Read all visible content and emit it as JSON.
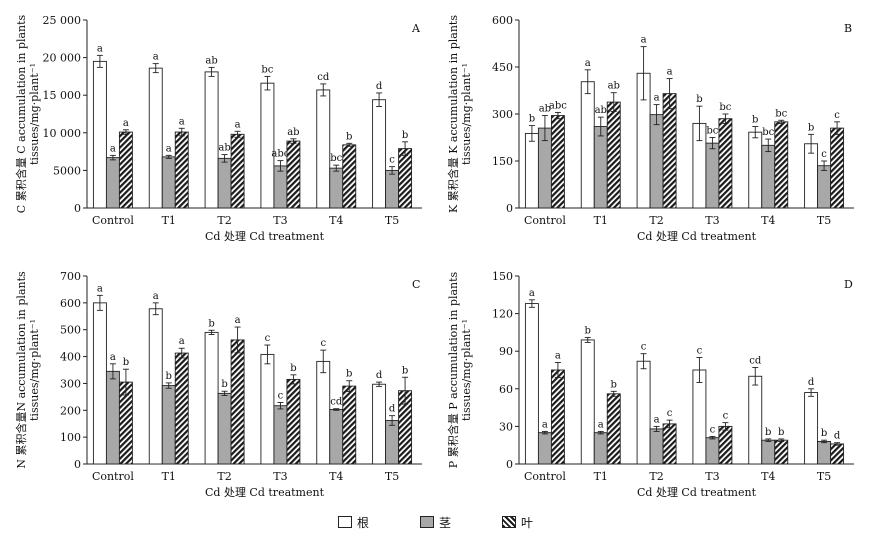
{
  "colors": {
    "root": "#ffffff",
    "stem": "#a8a8a8",
    "leaf_bg": "#ffffff",
    "leaf_hatch": "#1a1a1a",
    "axis": "#222222"
  },
  "legend": [
    {
      "label": "根",
      "style": "root"
    },
    {
      "label": "茎",
      "style": "stem"
    },
    {
      "label": "叶",
      "style": "leaf"
    }
  ],
  "chart_data": [
    {
      "type": "bar",
      "panel": "A",
      "categories": [
        "Control",
        "T1",
        "T2",
        "T3",
        "T4",
        "T5"
      ],
      "xlabel": "Cd 处理 Cd treatment",
      "ylabel_line1": "C 累积含量 C accumulation in plants",
      "ylabel_line2": "tissues/mg·plant⁻¹",
      "ylim": [
        0,
        25000
      ],
      "yticks": [
        0,
        5000,
        10000,
        15000,
        20000,
        25000
      ],
      "ytick_labels": [
        "0",
        "5000",
        "10 000",
        "15 000",
        "20 000",
        "25 000"
      ],
      "series": [
        {
          "key": "root",
          "values": [
            19500,
            18600,
            18100,
            16600,
            15700,
            14400
          ],
          "errors": [
            800,
            600,
            600,
            900,
            800,
            900
          ],
          "letters": [
            "a",
            "a",
            "ab",
            "bc",
            "cd",
            "d"
          ]
        },
        {
          "key": "stem",
          "values": [
            6700,
            6800,
            6600,
            5600,
            5300,
            5000
          ],
          "errors": [
            300,
            200,
            500,
            700,
            400,
            500
          ],
          "letters": [
            "a",
            "a",
            "ab",
            "abc",
            "bc",
            "c"
          ]
        },
        {
          "key": "leaf",
          "values": [
            10100,
            10100,
            9800,
            8900,
            8400,
            7900
          ],
          "errors": [
            300,
            500,
            400,
            300,
            200,
            900
          ],
          "letters": [
            "a",
            "a",
            "a",
            "ab",
            "b",
            "b"
          ]
        }
      ]
    },
    {
      "type": "bar",
      "panel": "B",
      "categories": [
        "Control",
        "T1",
        "T2",
        "T3",
        "T4",
        "T5"
      ],
      "xlabel": "Cd 处理 Cd treatment",
      "ylabel_line1": "K 累积含量 K accumulation in plants",
      "ylabel_line2": "tissues/mg·plant⁻¹",
      "ylim": [
        0,
        600
      ],
      "yticks": [
        0,
        150,
        300,
        450,
        600
      ],
      "ytick_labels": [
        "0",
        "150",
        "300",
        "450",
        "600"
      ],
      "series": [
        {
          "key": "root",
          "values": [
            238,
            403,
            430,
            270,
            242,
            205
          ],
          "errors": [
            25,
            38,
            85,
            55,
            18,
            30
          ],
          "letters": [
            "b",
            "a",
            "a",
            "b",
            "b",
            "b"
          ]
        },
        {
          "key": "stem",
          "values": [
            255,
            260,
            298,
            207,
            200,
            135
          ],
          "errors": [
            40,
            30,
            32,
            18,
            20,
            15
          ],
          "letters": [
            "ab",
            "ab",
            "a",
            "bc",
            "bc",
            "c"
          ]
        },
        {
          "key": "leaf",
          "values": [
            295,
            338,
            365,
            285,
            275,
            255
          ],
          "errors": [
            10,
            30,
            48,
            15,
            5,
            20
          ],
          "letters": [
            "abc",
            "ab",
            "a",
            "bc",
            "bc",
            "c"
          ]
        }
      ]
    },
    {
      "type": "bar",
      "panel": "C",
      "categories": [
        "Control",
        "T1",
        "T2",
        "T3",
        "T4",
        "T5"
      ],
      "xlabel": "Cd 处理 Cd treatment",
      "ylabel_line1": "N 累积含量N accumulation in plants",
      "ylabel_line2": "tissues/mg·plant⁻¹",
      "ylim": [
        0,
        700
      ],
      "yticks": [
        0,
        100,
        200,
        300,
        400,
        500,
        600,
        700
      ],
      "ytick_labels": [
        "0",
        "100",
        "200",
        "300",
        "400",
        "500",
        "600",
        "700"
      ],
      "series": [
        {
          "key": "root",
          "values": [
            600,
            578,
            490,
            408,
            382,
            297
          ],
          "errors": [
            28,
            22,
            8,
            35,
            42,
            8
          ],
          "letters": [
            "a",
            "a",
            "b",
            "c",
            "c",
            "d"
          ]
        },
        {
          "key": "stem",
          "values": [
            345,
            292,
            263,
            217,
            203,
            162
          ],
          "errors": [
            28,
            10,
            8,
            12,
            3,
            18
          ],
          "letters": [
            "a",
            "b",
            "b",
            "c",
            "cd",
            "d"
          ]
        },
        {
          "key": "leaf",
          "values": [
            305,
            413,
            462,
            315,
            290,
            273
          ],
          "errors": [
            48,
            18,
            48,
            17,
            20,
            50
          ],
          "letters": [
            "b",
            "a",
            "a",
            "b",
            "b",
            "b"
          ]
        }
      ]
    },
    {
      "type": "bar",
      "panel": "D",
      "categories": [
        "Control",
        "T1",
        "T2",
        "T3",
        "T4",
        "T5"
      ],
      "xlabel": "Cd 处理 Cd treatment",
      "ylabel_line1": "P 累积含量 P accumulation in plants",
      "ylabel_line2": "tissues/mg·plant⁻¹",
      "ylim": [
        0,
        150
      ],
      "yticks": [
        0,
        30,
        60,
        90,
        120,
        150
      ],
      "ytick_labels": [
        "0",
        "30",
        "60",
        "90",
        "120",
        "150"
      ],
      "series": [
        {
          "key": "root",
          "values": [
            128,
            99,
            82,
            75,
            70,
            57
          ],
          "errors": [
            3,
            2,
            6,
            10,
            7,
            3
          ],
          "letters": [
            "a",
            "b",
            "c",
            "c",
            "cd",
            "d"
          ]
        },
        {
          "key": "stem",
          "values": [
            25,
            25,
            28,
            21,
            19,
            18
          ],
          "errors": [
            1,
            1,
            2,
            1,
            1,
            1
          ],
          "letters": [
            "a",
            "a",
            "a",
            "c",
            "b",
            "b"
          ]
        },
        {
          "key": "leaf",
          "values": [
            75,
            56,
            32,
            30,
            19,
            16
          ],
          "errors": [
            6,
            2,
            3,
            3,
            1,
            1
          ],
          "letters": [
            "a",
            "b",
            "c",
            "c",
            "b",
            "d"
          ]
        }
      ]
    }
  ]
}
